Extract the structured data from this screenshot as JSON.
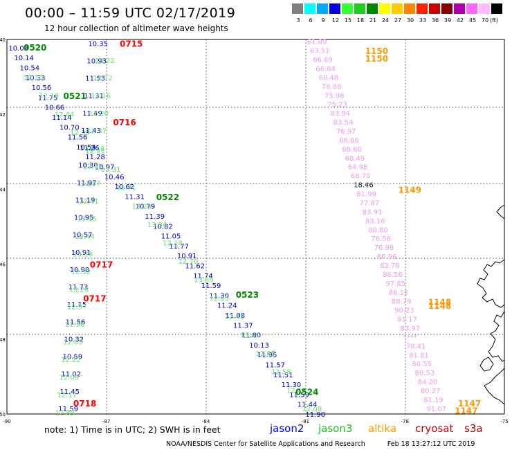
{
  "header": {
    "title": "00:00 – 11:59 UTC 02/17/2019",
    "subtitle": "12 hour collection of altimeter wave heights"
  },
  "legend": {
    "unit": "(ft)",
    "bins": [
      {
        "label": "3",
        "color": "#7f7f7f"
      },
      {
        "label": "6",
        "color": "#00ffff"
      },
      {
        "label": "9",
        "color": "#00aaff"
      },
      {
        "label": "12",
        "color": "#0000dd"
      },
      {
        "label": "15",
        "color": "#33ff33"
      },
      {
        "label": "18",
        "color": "#22cc22"
      },
      {
        "label": "21",
        "color": "#008800"
      },
      {
        "label": "24",
        "color": "#ffff00"
      },
      {
        "label": "27",
        "color": "#ffcc00"
      },
      {
        "label": "30",
        "color": "#ff8800"
      },
      {
        "label": "33",
        "color": "#ff2200"
      },
      {
        "label": "36",
        "color": "#cc0000"
      },
      {
        "label": "39",
        "color": "#880000"
      },
      {
        "label": "42",
        "color": "#aa00aa"
      },
      {
        "label": "45",
        "color": "#ff66ff"
      },
      {
        "label": "70",
        "color": "#ffbbff"
      },
      {
        "label": "",
        "color": "#000000"
      }
    ]
  },
  "map": {
    "lat_labels": [
      "40",
      "42",
      "44",
      "46",
      "48",
      "50"
    ],
    "lon_labels": [
      "-90",
      "-87",
      "-84",
      "-81",
      "-78",
      "-75"
    ],
    "colors": {
      "jason2": "#0000cc",
      "jason3": "#66e066",
      "jason3_time": "#008800",
      "jason2_time": "#ff0000",
      "altika": "#ff9900",
      "cryosat": "#ee99ee",
      "cryosat_dark": "#222222"
    },
    "times": [
      {
        "text": "0520",
        "color": "#008800",
        "lon": -89.5,
        "lat": 40.2
      },
      {
        "text": "0715",
        "color": "#ff0000",
        "lon": -86.6,
        "lat": 40.1
      },
      {
        "text": "0521",
        "color": "#008800",
        "lon": -88.3,
        "lat": 41.5
      },
      {
        "text": "0716",
        "color": "#ff0000",
        "lon": -86.8,
        "lat": 42.2
      },
      {
        "text": "0522",
        "color": "#008800",
        "lon": -85.5,
        "lat": 44.2
      },
      {
        "text": "0717",
        "color": "#ff0000",
        "lon": -87.5,
        "lat": 46.0
      },
      {
        "text": "0717",
        "color": "#ff0000",
        "lon": -87.7,
        "lat": 46.9
      },
      {
        "text": "0523",
        "color": "#008800",
        "lon": -83.1,
        "lat": 46.8
      },
      {
        "text": "0718",
        "color": "#ff0000",
        "lon": -88.0,
        "lat": 49.7
      },
      {
        "text": "0524",
        "color": "#008800",
        "lon": -81.3,
        "lat": 49.4
      },
      {
        "text": "1150",
        "color": "#ff9900",
        "lon": -79.2,
        "lat": 40.3
      },
      {
        "text": "1150",
        "color": "#ff9900",
        "lon": -79.2,
        "lat": 40.5
      },
      {
        "text": "1149",
        "color": "#ff9900",
        "lon": -78.2,
        "lat": 44.0
      },
      {
        "text": "1148",
        "color": "#ff9900",
        "lon": -77.3,
        "lat": 47.0
      },
      {
        "text": "1148",
        "color": "#ff9900",
        "lon": -77.3,
        "lat": 47.1
      },
      {
        "text": "1147",
        "color": "#ff9900",
        "lon": -76.4,
        "lat": 49.7
      },
      {
        "text": "1147",
        "color": "#ff9900",
        "lon": -76.5,
        "lat": 49.9
      }
    ],
    "track_jason2_diag": [
      "10.03",
      "10.14",
      "10.54",
      "10.33",
      "10.56",
      "11.75",
      "10.66",
      "11.14",
      "10.70",
      "11.56",
      "10.54",
      "11.28",
      "10.97",
      "10.46",
      "10.62",
      "11.31",
      "10.79",
      "11.39",
      "10.82",
      "11.05",
      "11.77",
      "10.91",
      "11.62",
      "11.74",
      "11.59",
      "11.30",
      "11.24",
      "11.08",
      "11.37",
      "11.80",
      "10.13",
      "11.95",
      "11.57",
      "11.51",
      "11.30",
      "11.59",
      "11.44",
      "11.90"
    ],
    "track_jason3_diag": [
      "12.10",
      "12.18",
      "12.44",
      "12.39",
      "12.21",
      "13.31",
      "12.71",
      "13.20",
      "13.34",
      "12.18",
      "12.70",
      "13.89",
      "12.05",
      "12.43",
      "13.01",
      "12.65",
      "12.58",
      "12.17",
      "12.09"
    ],
    "track_jason2_col": [
      "10.35",
      "10.93",
      "11.53",
      "11.31",
      "11.49",
      "11.43",
      "11.26",
      "10.30",
      "11.97",
      "11.19",
      "10.95",
      "10.57",
      "10.91",
      "10.90",
      "11.73",
      "11.15",
      "11.56",
      "10.32",
      "10.59",
      "11.02",
      "11.45",
      "11.59"
    ],
    "track_jason3_col": [
      "13.22",
      "12.72",
      "12.16",
      "12.20",
      "12.37",
      "12.18",
      "12.42",
      "11.87",
      "12.41",
      "13.15",
      "12.44",
      "13.18",
      "12.32",
      "13.28",
      "12.57",
      "11.56",
      "12.05",
      "12.22",
      "12.09",
      "12.17",
      "12.89"
    ],
    "track_cryosat": [
      "61.89",
      "63.51",
      "66.89",
      "66.84",
      "68.48",
      "78.88",
      "75.98",
      "75.23",
      "83.94",
      "83.54",
      "76.97",
      "66.86",
      "68.60",
      "68.49",
      "64.98",
      "68.70",
      "18.46",
      "81.99",
      "77.87",
      "83.91",
      "83.16",
      "80.80",
      "76.56",
      "76.98",
      "86.96",
      "83.78",
      "86.56",
      "97.85",
      "86.12",
      "88.79",
      "90.23",
      "81.17",
      "83.97",
      "****",
      "78.41",
      "81.81",
      "80.55",
      "80.53",
      "84.20",
      "80.27",
      "81.19",
      "91.07"
    ],
    "track_cryosat_marked": "18.46"
  },
  "note": "note:  1) Time is in UTC;  2) SWH is in feet",
  "satellites": [
    {
      "name": "jason2",
      "color": "#0000ff"
    },
    {
      "name": "jason3",
      "color": "#22bb22"
    },
    {
      "name": "altika",
      "color": "#ff9900"
    },
    {
      "name": "cryosat",
      "color": "#cc0000"
    },
    {
      "name": "s3a",
      "color": "#aa0000"
    }
  ],
  "footer": {
    "credit": "NOAA/NESDIS Center for Satellite Applications and Research",
    "timestamp": "Feb 18 13:27:12 UTC 2019"
  }
}
